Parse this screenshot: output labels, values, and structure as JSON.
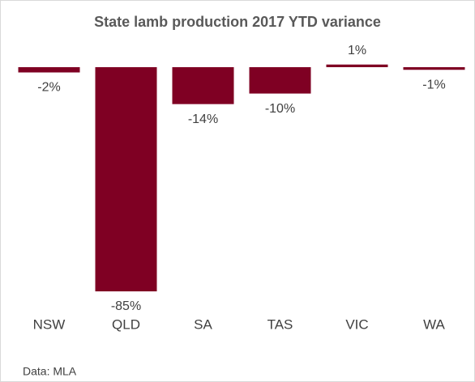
{
  "chart_data": {
    "type": "bar",
    "title": "State lamb production 2017 YTD variance",
    "categories": [
      "NSW",
      "QLD",
      "SA",
      "TAS",
      "VIC",
      "WA"
    ],
    "values": [
      -2,
      -85,
      -14,
      -10,
      1,
      -1
    ],
    "value_labels": [
      "-2%",
      "-85%",
      "-14%",
      "-10%",
      "1%",
      "-1%"
    ],
    "color": "#7f0023",
    "source": "Data: MLA"
  }
}
